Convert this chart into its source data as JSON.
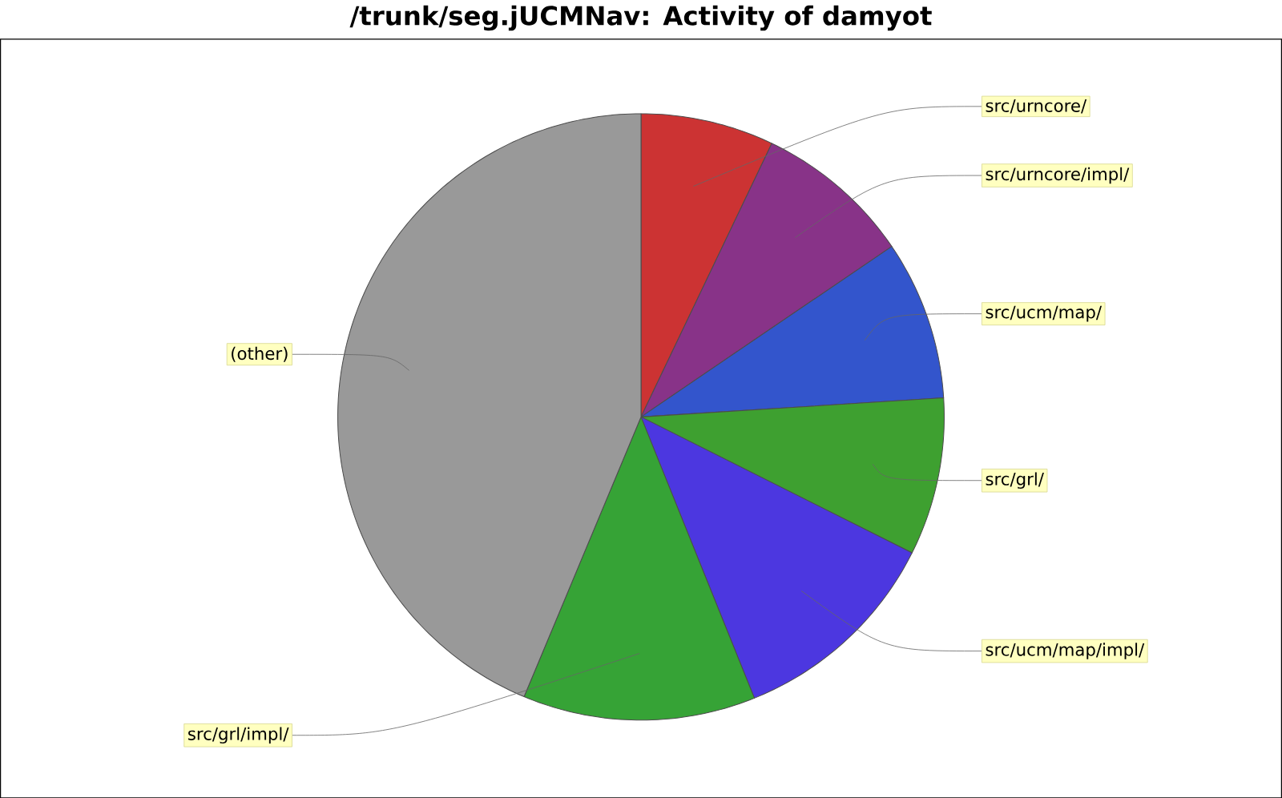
{
  "chart_data": {
    "type": "pie",
    "title": "/trunk/seg.jUCMNav: Activity of damyot",
    "categories": [
      "src/urncore/",
      "src/urncore/impl/",
      "src/ucm/map/",
      "src/grl/",
      "src/ucm/map/impl/",
      "src/grl/impl/",
      "(other)"
    ],
    "values": [
      7.1,
      8.4,
      8.5,
      8.4,
      11.5,
      12.4,
      43.7
    ],
    "colors": [
      "#cc3333",
      "#883388",
      "#3355cc",
      "#3ea030",
      "#4c37e0",
      "#36a336",
      "#999999"
    ]
  }
}
